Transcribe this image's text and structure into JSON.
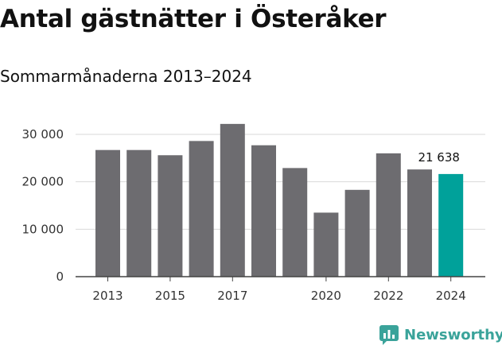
{
  "title": "Antal gästnätter i Österåker",
  "subtitle": "Sommarmånaderna 2013–2024",
  "brand": {
    "name": "Newsworthy"
  },
  "colors": {
    "bar": "#6d6c70",
    "highlight": "#00a19a",
    "brand": "#3aa39a"
  },
  "chart_data": {
    "type": "bar",
    "title": "Antal gästnätter i Österåker",
    "subtitle": "Sommarmånaderna 2013–2024",
    "categories": [
      "2013",
      "2014",
      "2015",
      "2016",
      "2017",
      "2018",
      "2019",
      "2020",
      "2021",
      "2022",
      "2023",
      "2024"
    ],
    "values": [
      26700,
      26700,
      25600,
      28600,
      32200,
      27700,
      22900,
      13500,
      18300,
      26000,
      22600,
      21638
    ],
    "highlight_index": 11,
    "highlight_label": "21 638",
    "ylim": [
      0,
      30000
    ],
    "yticks": [
      0,
      10000,
      20000,
      30000
    ],
    "ytick_labels": [
      "0",
      "10 000",
      "20 000",
      "30 000"
    ],
    "xtick_labels": [
      "2013",
      "2015",
      "2017",
      "2020",
      "2022",
      "2024"
    ],
    "xtick_indices": [
      0,
      2,
      4,
      7,
      9,
      11
    ],
    "grid": true,
    "xlabel": "",
    "ylabel": ""
  }
}
